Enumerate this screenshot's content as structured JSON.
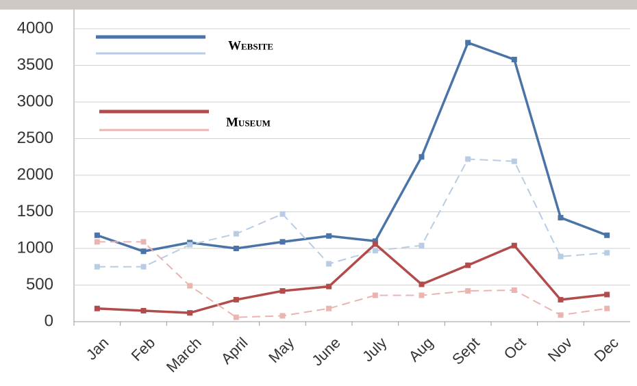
{
  "chart_data": {
    "type": "line",
    "categories": [
      "Jan",
      "Feb",
      "March",
      "April",
      "May",
      "June",
      "July",
      "Aug",
      "Sept",
      "Oct",
      "Nov",
      "Dec"
    ],
    "series": [
      {
        "name": "Website",
        "color": "#4a74a8",
        "dashed": false,
        "values": [
          1180,
          960,
          1080,
          1000,
          1090,
          1170,
          1100,
          2250,
          3810,
          3580,
          1420,
          1180
        ]
      },
      {
        "color": "#b8cce4",
        "dashed": true,
        "values": [
          750,
          750,
          1050,
          1200,
          1470,
          790,
          970,
          1040,
          2220,
          2190,
          890,
          940
        ]
      },
      {
        "name": "Museum",
        "color": "#b24b4b",
        "dashed": false,
        "values": [
          180,
          150,
          120,
          300,
          420,
          480,
          1060,
          510,
          770,
          1040,
          300,
          370
        ]
      },
      {
        "color": "#eab4b0",
        "dashed": true,
        "values": [
          1090,
          1090,
          490,
          60,
          80,
          180,
          360,
          360,
          420,
          430,
          90,
          180
        ]
      }
    ],
    "ylim": [
      0,
      4000
    ],
    "yticks": [
      0,
      500,
      1000,
      1500,
      2000,
      2500,
      3000,
      3500,
      4000
    ],
    "grid": true
  }
}
